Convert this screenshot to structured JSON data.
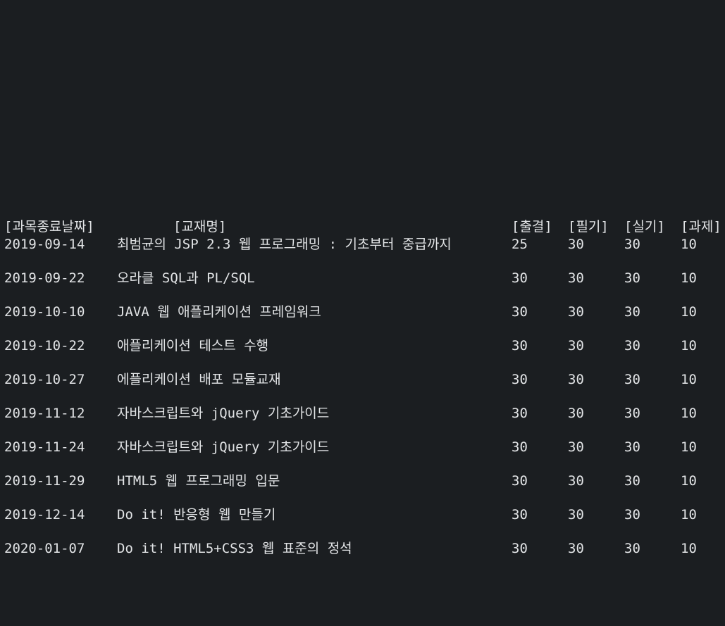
{
  "header": {
    "date": "[과목종료날짜]",
    "title": "[교재명]",
    "attendance": "[출결]",
    "written": "[필기]",
    "practical": "[실기]",
    "assignment": "[과제]"
  },
  "rows": [
    {
      "date": "2019-09-14",
      "title": "최범균의 JSP 2.3 웹 프로그래밍 : 기초부터 중급까지",
      "attendance": "25",
      "written": "30",
      "practical": "30",
      "assignment": "10"
    },
    {
      "date": "2019-09-22",
      "title": "오라클 SQL과 PL/SQL",
      "attendance": "30",
      "written": "30",
      "practical": "30",
      "assignment": "10"
    },
    {
      "date": "2019-10-10",
      "title": "JAVA 웹 애플리케이션 프레임워크",
      "attendance": "30",
      "written": "30",
      "practical": "30",
      "assignment": "10"
    },
    {
      "date": "2019-10-22",
      "title": "애플리케이션 테스트 수행",
      "attendance": "30",
      "written": "30",
      "practical": "30",
      "assignment": "10"
    },
    {
      "date": "2019-10-27",
      "title": "에플리케이션 배포 모듈교재",
      "attendance": "30",
      "written": "30",
      "practical": "30",
      "assignment": "10"
    },
    {
      "date": "2019-11-12",
      "title": "자바스크립트와 jQuery 기초가이드",
      "attendance": "30",
      "written": "30",
      "practical": "30",
      "assignment": "10"
    },
    {
      "date": "2019-11-24",
      "title": "자바스크립트와 jQuery 기초가이드",
      "attendance": "30",
      "written": "30",
      "practical": "30",
      "assignment": "10"
    },
    {
      "date": "2019-11-29",
      "title": "HTML5 웹 프로그래밍 입문",
      "attendance": "30",
      "written": "30",
      "practical": "30",
      "assignment": "10"
    },
    {
      "date": "2019-12-14",
      "title": "Do it! 반응형 웹 만들기",
      "attendance": "30",
      "written": "30",
      "practical": "30",
      "assignment": "10"
    },
    {
      "date": "2020-01-07",
      "title": "Do it! HTML5+CSS3 웹 표준의 정석",
      "attendance": "30",
      "written": "30",
      "practical": "30",
      "assignment": "10"
    }
  ],
  "colors": {
    "background": "#1b1e21",
    "text": "#e2e4e6"
  }
}
